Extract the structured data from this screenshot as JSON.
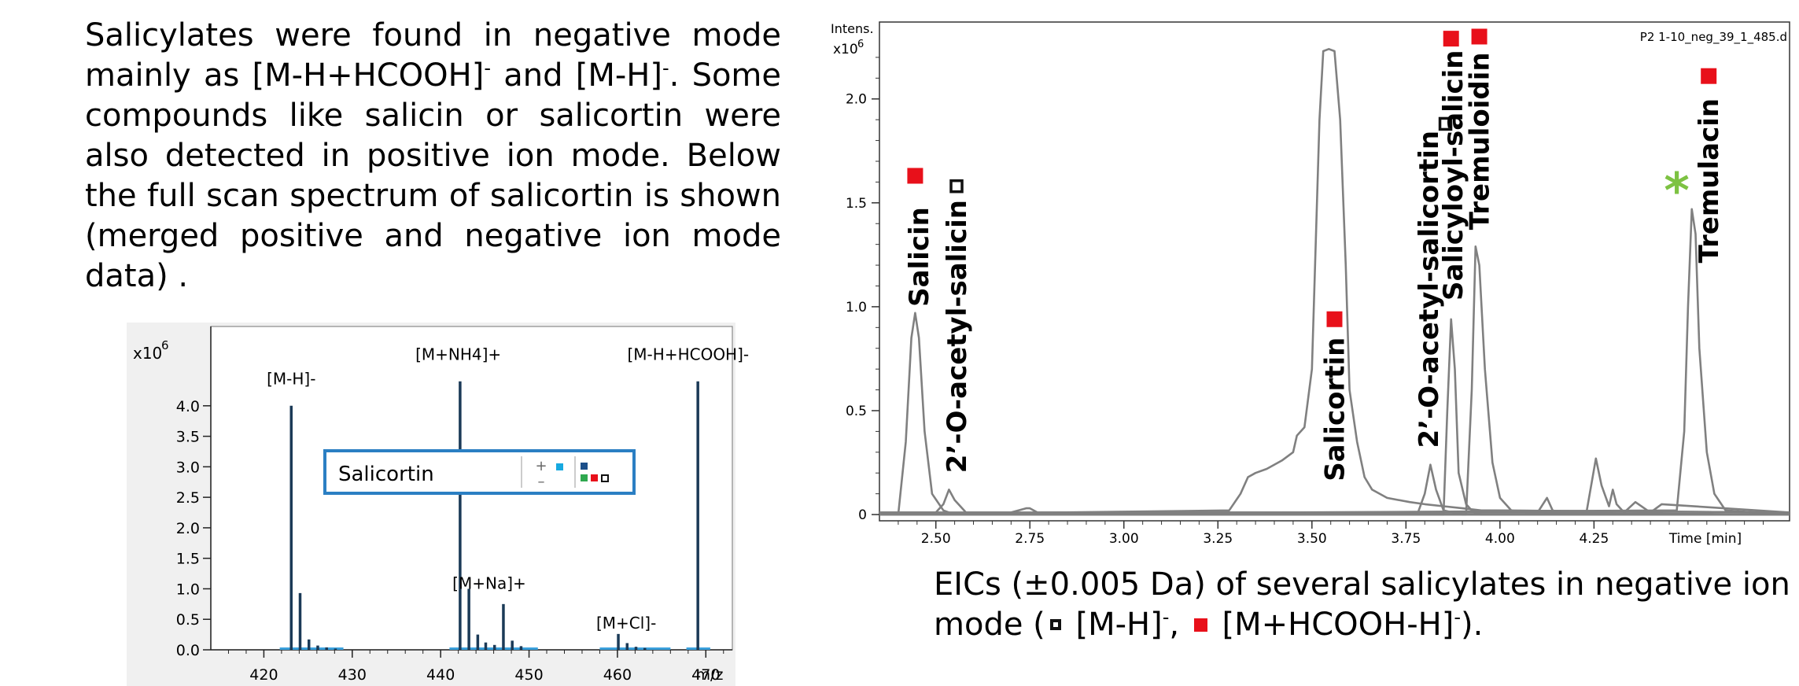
{
  "intro": {
    "part1": "Salicylates were found in negative mode mainly as [M-H+HCOOH]",
    "sup1": "-",
    "part2": " and [M-H]",
    "sup2": "-",
    "part3": ". Some compounds like salicin or salicortin were also detected in positive ion mode. Below the full scan spectrum of salicortin is shown (merged positive and negative ion mode data) ."
  },
  "caption": {
    "part1": "EICs (±0.005 Da) of several salicylates in negative ion mode (",
    "part2": " [M-H]",
    "sup1": "-",
    "part3": ", ",
    "part4": " [M+HCOOH-H]",
    "sup2": "-",
    "part5": ")."
  },
  "colors": {
    "trace": "#808080",
    "stick": "#1b3a57",
    "marker_red": "#e8101a",
    "marker_open": "#111111",
    "asterisk": "#7dc242",
    "legend_border": "#2b7fc3",
    "legend_cyan": "#17a9e0",
    "plot_bg": "#ffffff",
    "spectrum_bg": "#f0f0f0"
  },
  "chart_data": [
    {
      "type": "line",
      "description_label": "EIC",
      "ylabel": "Intens.",
      "y_multiplier": "x10",
      "y_exponent": "6",
      "xlabel": "Time [min]",
      "file_label": "P2 1-10_neg_39_1_485.d",
      "xlim": [
        2.35,
        4.77
      ],
      "ylim": [
        -0.03,
        2.37
      ],
      "x_ticks": [
        2.5,
        2.75,
        3.0,
        3.25,
        3.5,
        3.75,
        4.0,
        4.25
      ],
      "x_tick_labels": [
        "2.50",
        "2.75",
        "3.00",
        "3.25",
        "3.50",
        "3.75",
        "4.00",
        "4.25"
      ],
      "y_ticks": [
        0,
        0.5,
        1.0,
        1.5,
        2.0
      ],
      "y_tick_labels": [
        "0",
        "0.5",
        "1.0",
        "1.5",
        "2.0"
      ],
      "series": [
        {
          "x": [
            2.35,
            2.4,
            2.42,
            2.435,
            2.445,
            2.455,
            2.47,
            2.49,
            2.52,
            2.55,
            4.77
          ],
          "y": [
            0.0,
            0.0,
            0.35,
            0.85,
            0.97,
            0.85,
            0.4,
            0.1,
            0.02,
            0.0,
            0.0
          ]
        },
        {
          "x": [
            2.35,
            2.5,
            2.52,
            2.535,
            2.55,
            2.58,
            2.7,
            2.74,
            2.75,
            2.77,
            3.3,
            3.45,
            3.9,
            3.95,
            4.77
          ],
          "y": [
            0.01,
            0.01,
            0.05,
            0.12,
            0.07,
            0.01,
            0.01,
            0.03,
            0.03,
            0.01,
            0.01,
            0.01,
            0.01,
            0.02,
            0.01
          ]
        },
        {
          "x": [
            2.35,
            3.28,
            3.31,
            3.33,
            3.35,
            3.38,
            3.42,
            3.45,
            3.46,
            3.48,
            3.5,
            3.51,
            3.52,
            3.53,
            3.545,
            3.56,
            3.575,
            3.59,
            3.6,
            3.62,
            3.64,
            3.66,
            3.7,
            3.76,
            3.8,
            3.85,
            3.9,
            3.95,
            4.77
          ],
          "y": [
            0.0,
            0.02,
            0.1,
            0.18,
            0.2,
            0.22,
            0.26,
            0.3,
            0.38,
            0.42,
            0.7,
            1.3,
            1.9,
            2.23,
            2.24,
            2.23,
            1.9,
            1.2,
            0.6,
            0.35,
            0.18,
            0.12,
            0.08,
            0.06,
            0.05,
            0.04,
            0.03,
            0.02,
            0.01
          ]
        },
        {
          "x": [
            2.35,
            3.78,
            3.8,
            3.815,
            3.83,
            3.85,
            3.9,
            4.77
          ],
          "y": [
            0.0,
            0.0,
            0.1,
            0.24,
            0.12,
            0.02,
            0.0,
            0.0
          ]
        },
        {
          "x": [
            2.35,
            3.85,
            3.86,
            3.87,
            3.88,
            3.89,
            3.91,
            3.93,
            3.95,
            4.77
          ],
          "y": [
            0.0,
            0.0,
            0.5,
            0.94,
            0.7,
            0.2,
            0.05,
            0.01,
            0.0,
            0.0
          ]
        },
        {
          "x": [
            2.35,
            3.91,
            3.925,
            3.935,
            3.945,
            3.96,
            3.98,
            4.0,
            4.03,
            4.07,
            4.77
          ],
          "y": [
            0.0,
            0.0,
            0.6,
            1.29,
            1.2,
            0.7,
            0.25,
            0.08,
            0.02,
            0.01,
            0.0
          ]
        },
        {
          "x": [
            2.35,
            4.1,
            4.125,
            4.14,
            4.16,
            4.23,
            4.255,
            4.27,
            4.29,
            4.3,
            4.31,
            4.33,
            4.36,
            4.4,
            4.43,
            4.77
          ],
          "y": [
            0.01,
            0.01,
            0.08,
            0.02,
            0.01,
            0.01,
            0.27,
            0.14,
            0.04,
            0.12,
            0.05,
            0.01,
            0.06,
            0.01,
            0.05,
            0.01
          ]
        },
        {
          "x": [
            2.35,
            4.47,
            4.49,
            4.5,
            4.51,
            4.52,
            4.53,
            4.55,
            4.57,
            4.6,
            4.77
          ],
          "y": [
            0.0,
            0.02,
            0.4,
            1.0,
            1.47,
            1.35,
            0.8,
            0.3,
            0.1,
            0.02,
            0.0
          ]
        }
      ],
      "markers": [
        {
          "x": 2.445,
          "y": 1.63,
          "kind": "filled"
        },
        {
          "x": 2.555,
          "y": 1.58,
          "kind": "open"
        },
        {
          "x": 3.56,
          "y": 0.94,
          "kind": "filled"
        },
        {
          "x": 3.855,
          "y": 1.88,
          "kind": "open"
        },
        {
          "x": 3.87,
          "y": 2.29,
          "kind": "filled"
        },
        {
          "x": 3.945,
          "y": 2.3,
          "kind": "filled"
        },
        {
          "x": 4.555,
          "y": 2.11,
          "kind": "filled"
        }
      ],
      "asterisk": {
        "x": 4.47,
        "y": 1.59,
        "text": "*"
      },
      "peak_labels": [
        {
          "text": "Salicin",
          "x": 2.455,
          "y": 1.0
        },
        {
          "text": "2’-O-acetyl-salicin",
          "x": 2.555,
          "y": 0.2
        },
        {
          "text": "Salicortin",
          "x": 3.56,
          "y": 0.16
        },
        {
          "text": "2’-O-acetyl-salicortin",
          "x": 3.81,
          "y": 0.32
        },
        {
          "text": "Salicyloyl-salicin",
          "x": 3.875,
          "y": 1.03
        },
        {
          "text": "Tremuloidin",
          "x": 3.945,
          "y": 1.37
        },
        {
          "text": "Tremulacin",
          "x": 4.555,
          "y": 1.21
        }
      ]
    },
    {
      "type": "bar",
      "ylabel": "x10",
      "y_exponent": "6",
      "xlabel": "m/z",
      "legend_label": "Salicortin",
      "xlim": [
        414,
        473
      ],
      "ylim": [
        0,
        5.3
      ],
      "x_ticks": [
        420,
        430,
        440,
        450,
        460,
        470
      ],
      "x_tick_labels": [
        "420",
        "430",
        "440",
        "450",
        "460",
        "470"
      ],
      "y_ticks": [
        0.0,
        0.5,
        1.0,
        1.5,
        2.0,
        2.5,
        3.0,
        3.5,
        4.0
      ],
      "y_tick_labels": [
        "0.0",
        "0.5",
        "1.0",
        "1.5",
        "2.0",
        "2.5",
        "3.0",
        "3.5",
        "4.0"
      ],
      "x": [
        423.1,
        424.1,
        425.1,
        426.1,
        427.1,
        428.1,
        442.2,
        443.2,
        444.2,
        445.1,
        446.1,
        447.1,
        448.1,
        449.1,
        460.1,
        461.1,
        462.1,
        463.1,
        469.1
      ],
      "values": [
        4.0,
        0.93,
        0.17,
        0.07,
        0.04,
        0.02,
        4.4,
        1.0,
        0.25,
        0.12,
        0.08,
        0.75,
        0.15,
        0.06,
        0.26,
        0.11,
        0.05,
        0.03,
        4.4
      ],
      "ion_labels": [
        {
          "text": "[M-H]-",
          "x": 423.1,
          "y": 4.35
        },
        {
          "text": "[M+NH4]+",
          "x": 442.0,
          "y": 4.75
        },
        {
          "text": "[M+Na]+",
          "x": 445.5,
          "y": 1.0
        },
        {
          "text": "[M+Cl]-",
          "x": 461.0,
          "y": 0.35
        },
        {
          "text": "[M-H+HCOOH]-",
          "x": 468.0,
          "y": 4.75
        }
      ]
    }
  ]
}
